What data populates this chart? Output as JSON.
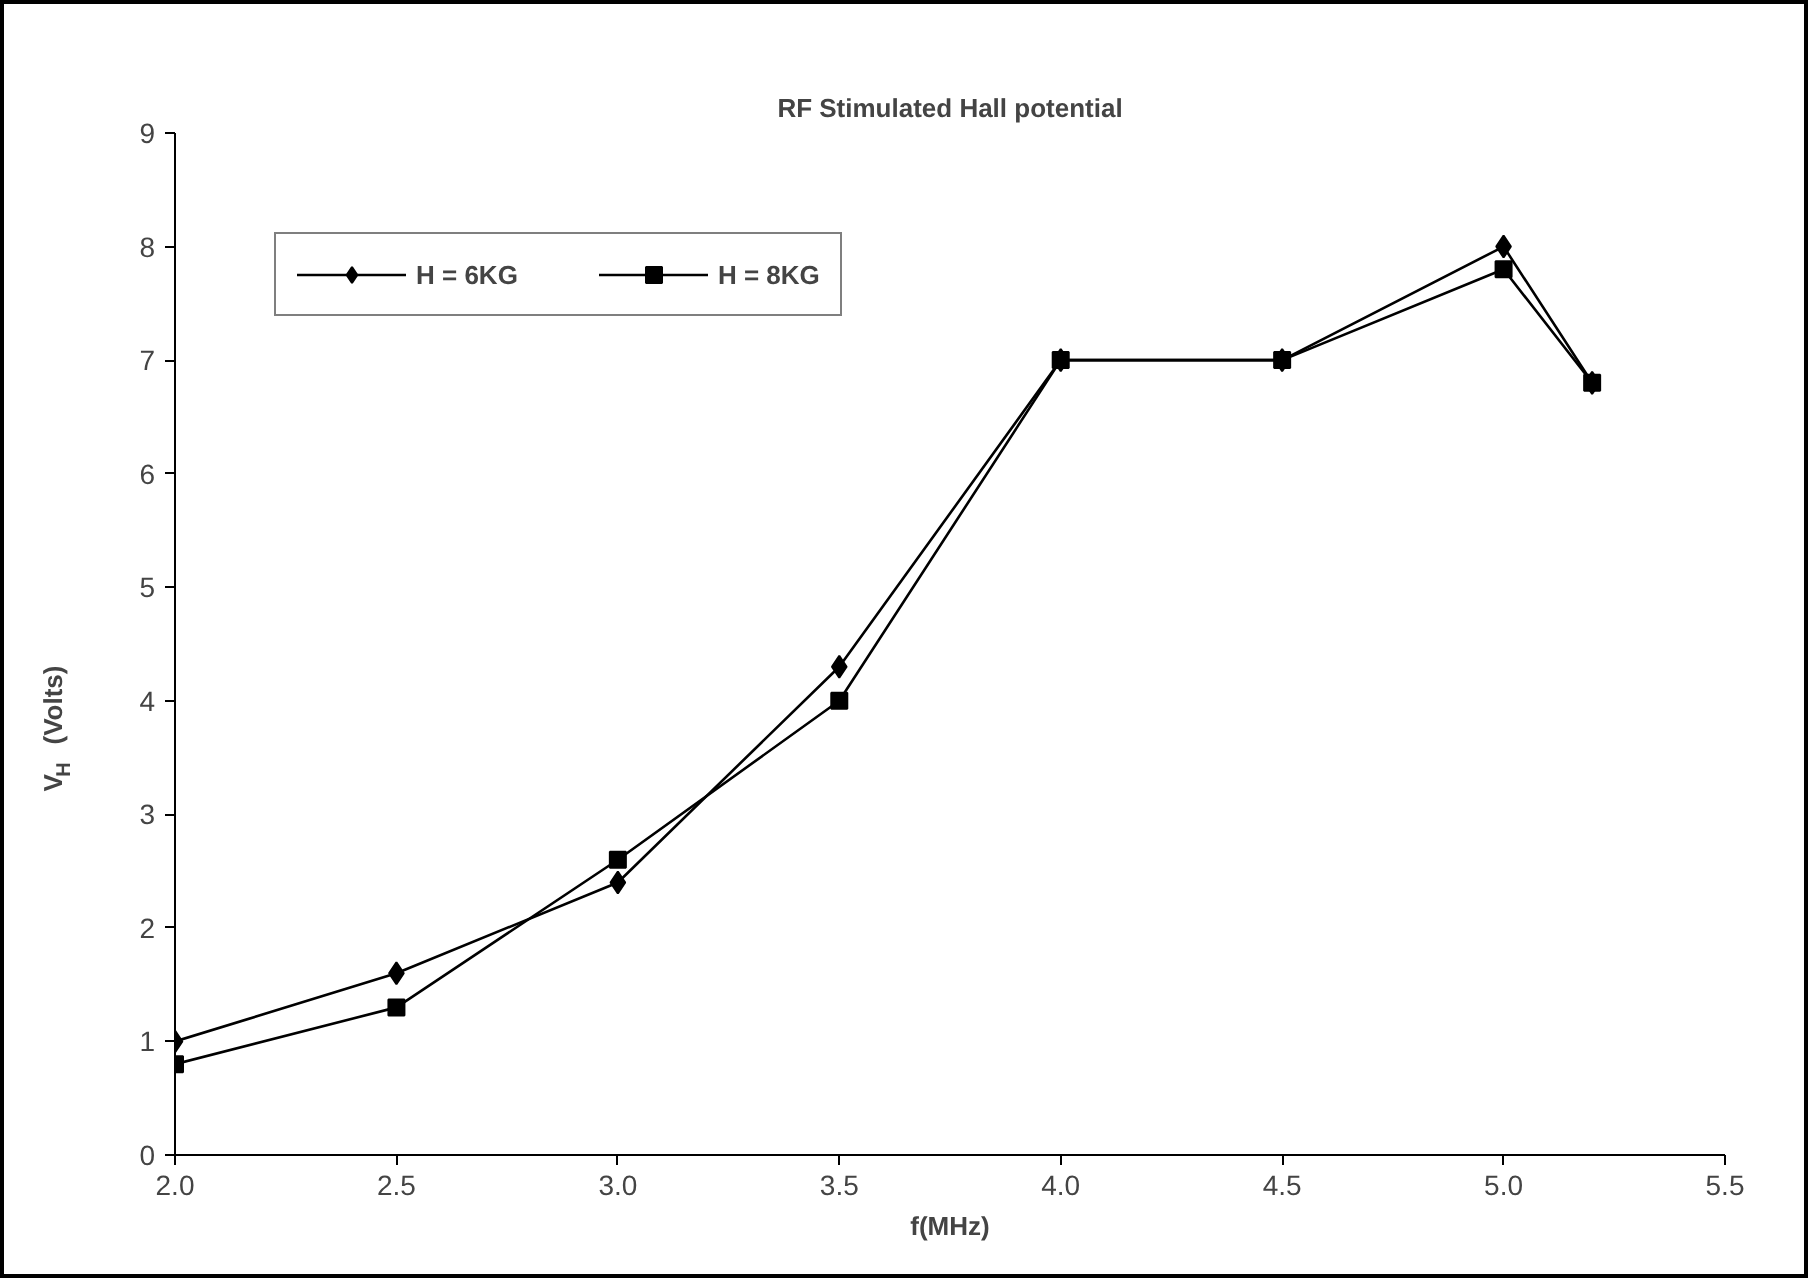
{
  "chart_data": {
    "type": "line",
    "title": "RF Stimulated Hall potential",
    "xlabel": "f(MHz)",
    "ylabel": "V$_{H}$ (Volts)",
    "x": [
      2.0,
      2.5,
      3.0,
      3.5,
      4.0,
      4.5,
      5.0,
      5.2
    ],
    "series": [
      {
        "name": "H = 6KG",
        "color": "#000000",
        "marker": "diamond",
        "values": [
          1.0,
          1.6,
          2.4,
          4.3,
          7.0,
          7.0,
          8.0,
          6.8
        ]
      },
      {
        "name": "H = 8KG",
        "color": "#000000",
        "marker": "square",
        "values": [
          0.8,
          1.3,
          2.6,
          4.0,
          7.0,
          7.0,
          7.8,
          6.8
        ]
      }
    ],
    "xlim": [
      2.0,
      5.5
    ],
    "xticks": [
      {
        "value": 2.0,
        "label": "2.0"
      },
      {
        "value": 2.5,
        "label": "2.5"
      },
      {
        "value": 3.0,
        "label": "3.0"
      },
      {
        "value": 3.5,
        "label": "3.5"
      },
      {
        "value": 4.0,
        "label": "4.0"
      },
      {
        "value": 4.5,
        "label": "4.5"
      },
      {
        "value": 5.0,
        "label": "5.0"
      },
      {
        "value": 5.5,
        "label": "5.5"
      }
    ],
    "ylim": [
      0,
      9
    ],
    "yticks": [
      0,
      1,
      2,
      3,
      4,
      5,
      6,
      7,
      8,
      9
    ],
    "grid": false,
    "legend": "top left",
    "line_style": "solid"
  }
}
